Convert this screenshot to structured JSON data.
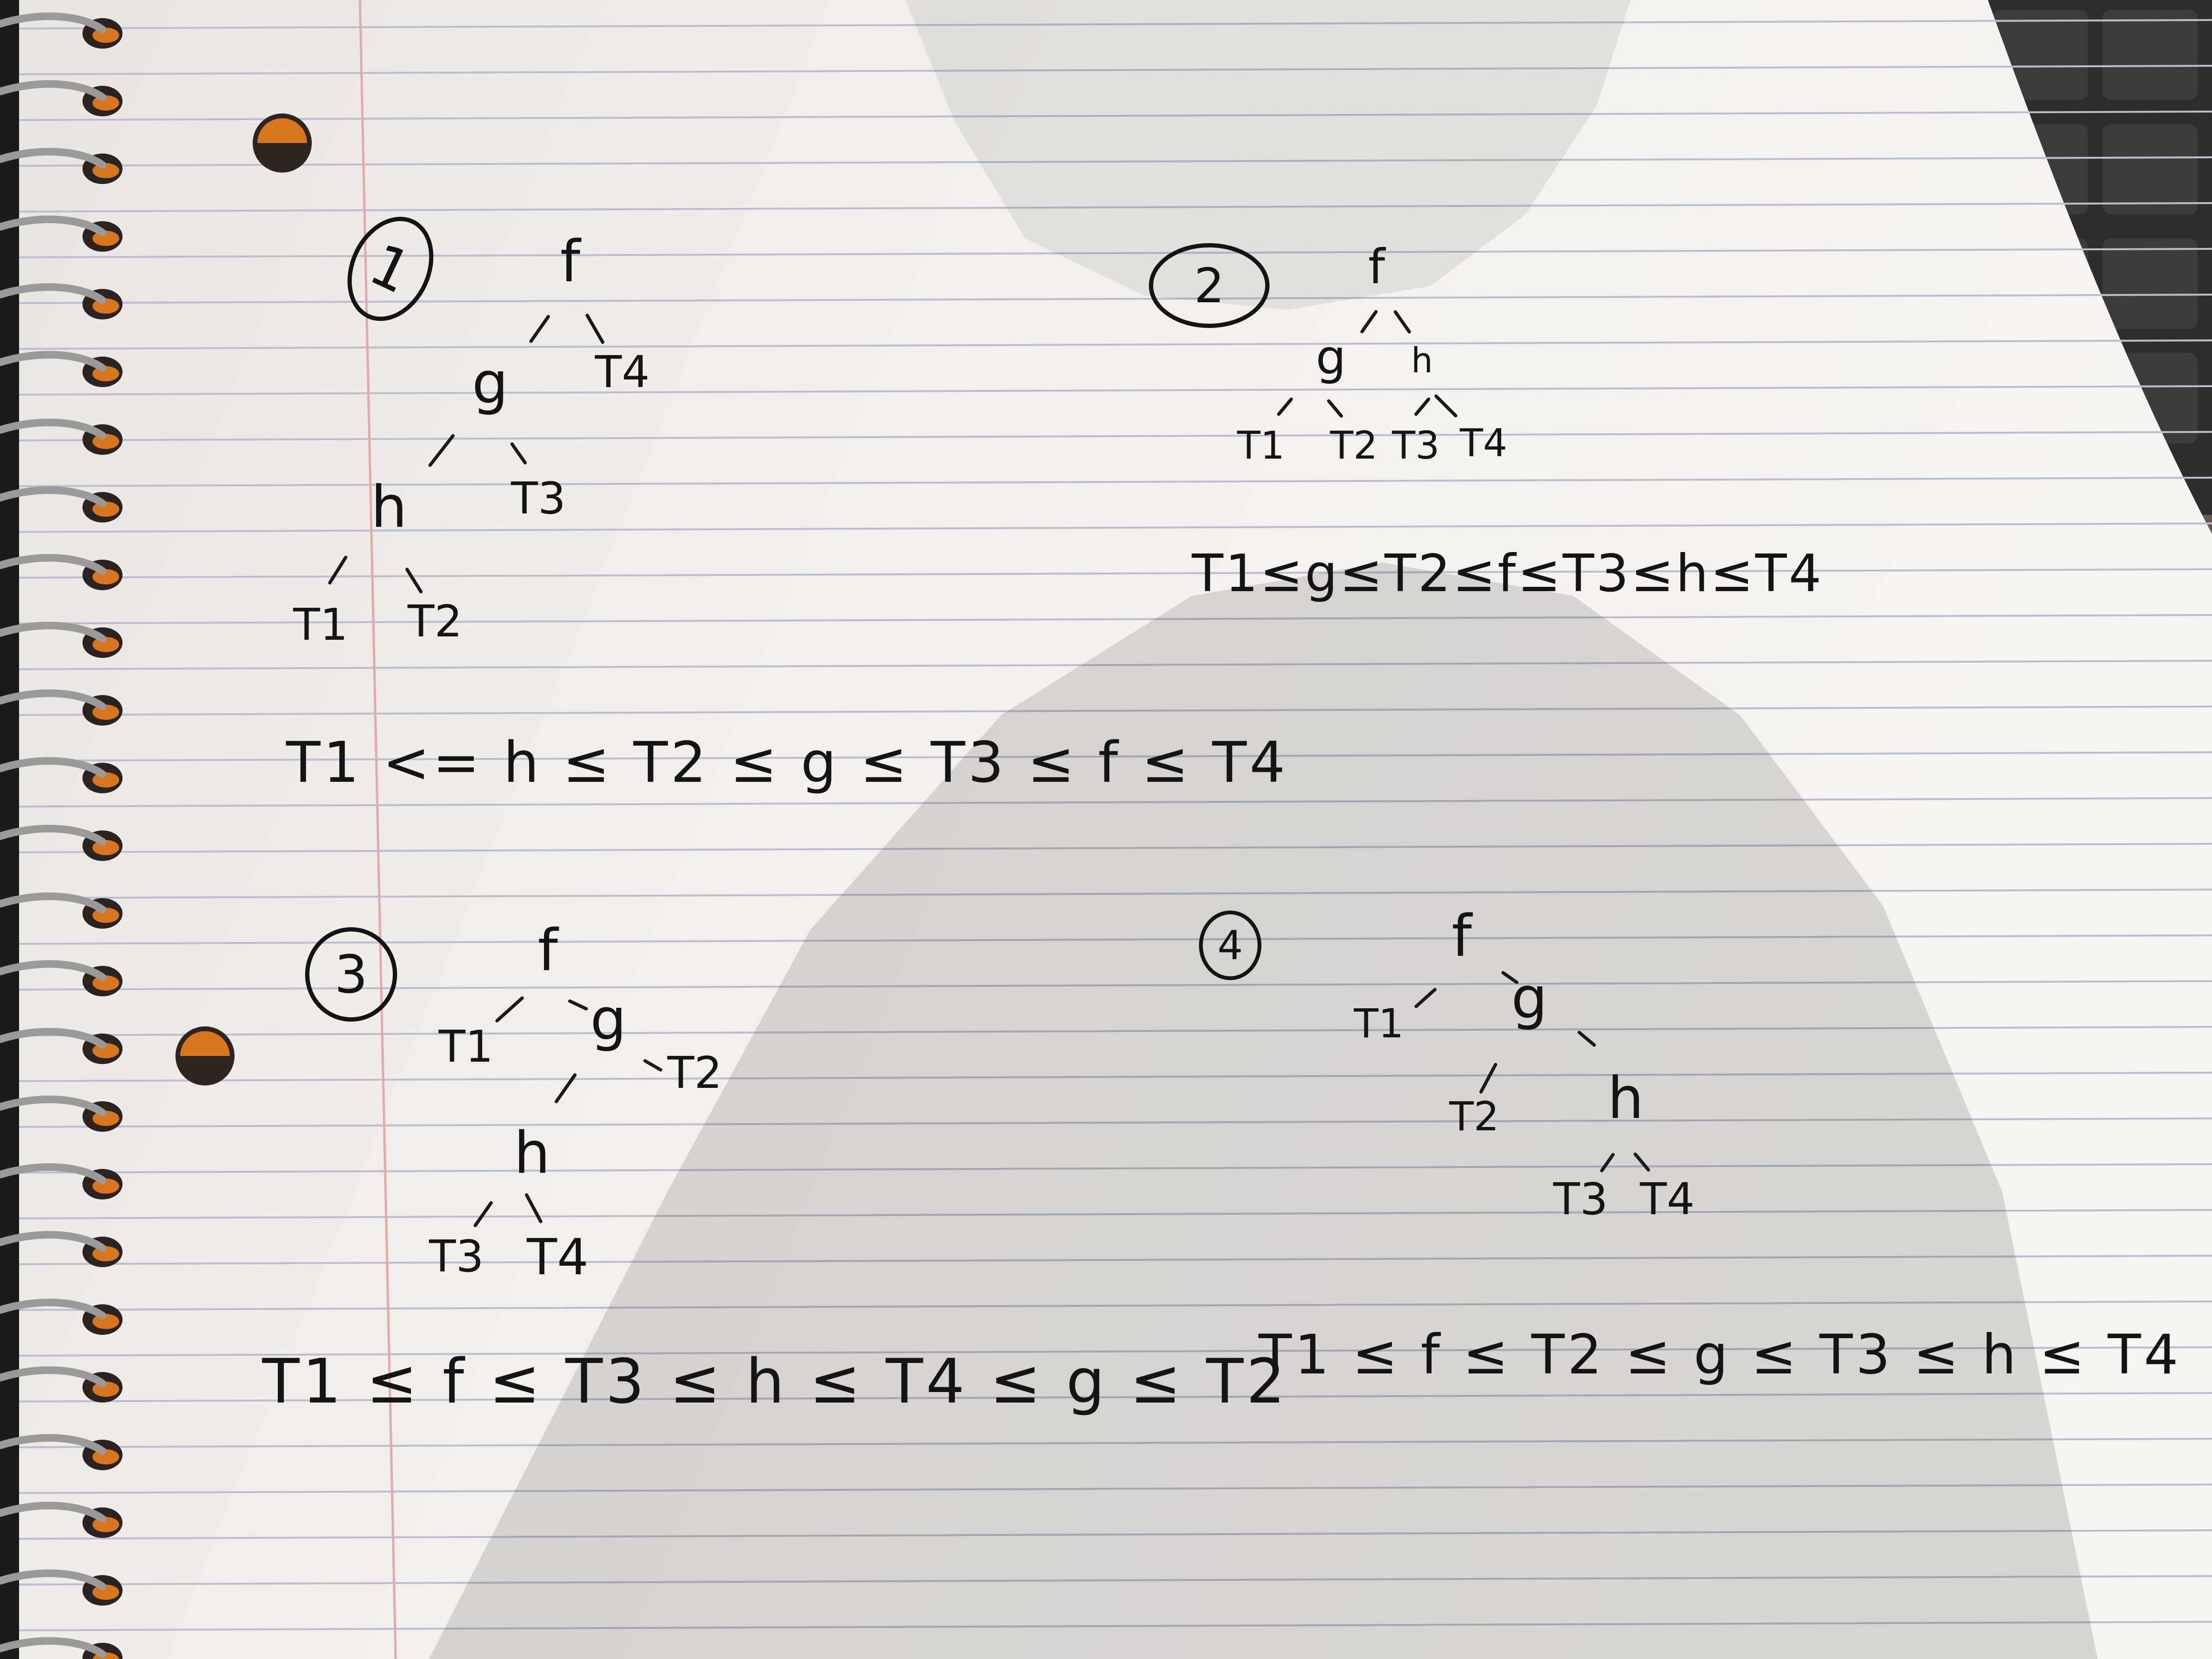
{
  "tree1": {
    "number": "1",
    "nodes": {
      "f": "f",
      "g": "g",
      "h": "h"
    },
    "leaves": {
      "t1": "T1",
      "t2": "T2",
      "t3": "T3",
      "t4": "T4"
    },
    "inequality": "T1 <= h ≤ T2 ≤ g ≤ T3 ≤ f ≤ T4"
  },
  "tree2": {
    "number": "2",
    "nodes": {
      "f": "f",
      "g": "g",
      "h": "h"
    },
    "leaves": {
      "t1": "T1",
      "t2": "T2",
      "t3": "T3",
      "t4": "T4"
    },
    "inequality": "T1≤g≤T2≤f≤T3≤h≤T4"
  },
  "tree3": {
    "number": "3",
    "nodes": {
      "f": "f",
      "g": "g",
      "h": "h"
    },
    "leaves": {
      "t1": "T1",
      "t2": "T2",
      "t3": "T3",
      "t4": "T4"
    },
    "inequality": "T1 ≤ f ≤ T3 ≤ h ≤ T4 ≤ g ≤ T2"
  },
  "tree4": {
    "number": "4",
    "nodes": {
      "f": "f",
      "g": "g",
      "h": "h"
    },
    "leaves": {
      "t1": "T1",
      "t2": "T2",
      "t3": "T3",
      "t4": "T4"
    },
    "inequality": "T1 ≤ f ≤ T2 ≤ g ≤ T3 ≤ h ≤ T4"
  },
  "colors": {
    "paper": "#eeeae6",
    "rule_line": "#b9bfd0",
    "margin_line": "#e3a9ad",
    "ink": "#141414",
    "hole_orange": "#d9741f"
  }
}
